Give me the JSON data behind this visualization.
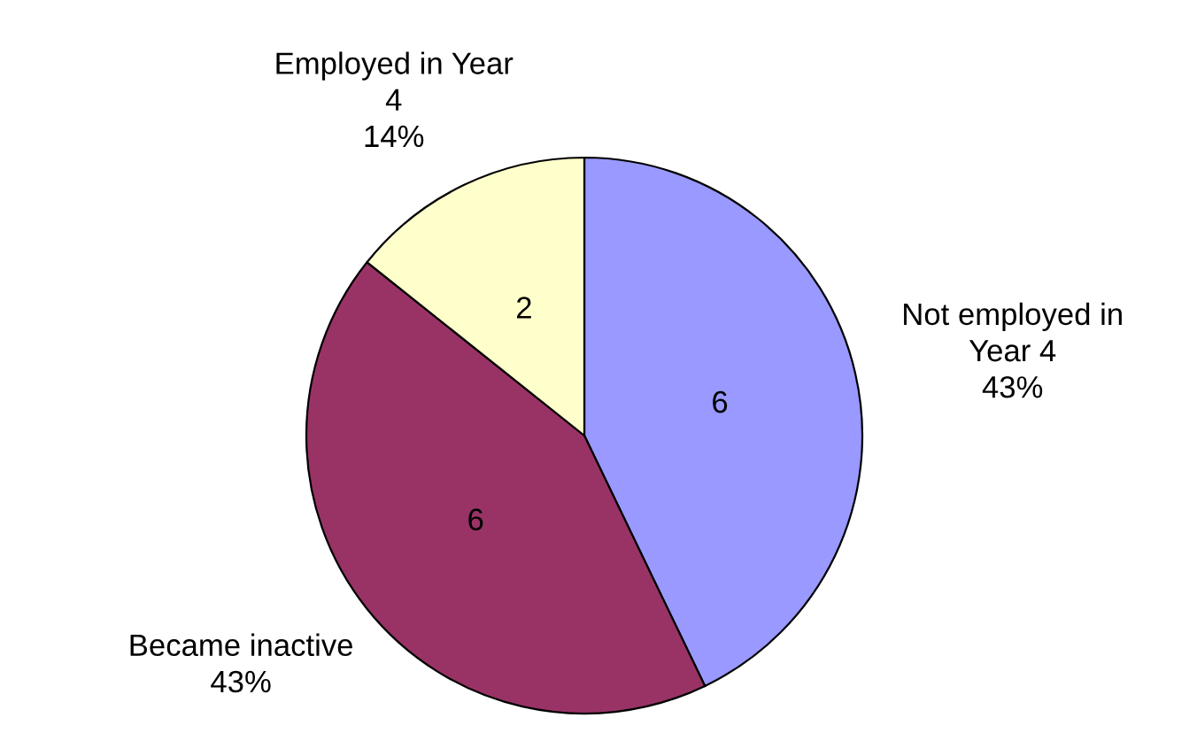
{
  "chart_data": {
    "type": "pie",
    "categories": [
      "Not employed in Year 4",
      "Became inactive",
      "Employed in Year 4"
    ],
    "values": [
      6,
      6,
      2
    ],
    "colors": [
      "#9999ff",
      "#993366",
      "#ffffcc"
    ],
    "data_labels": true,
    "annotations": [
      "43%",
      "43%",
      "14%"
    ],
    "legend": false
  }
}
